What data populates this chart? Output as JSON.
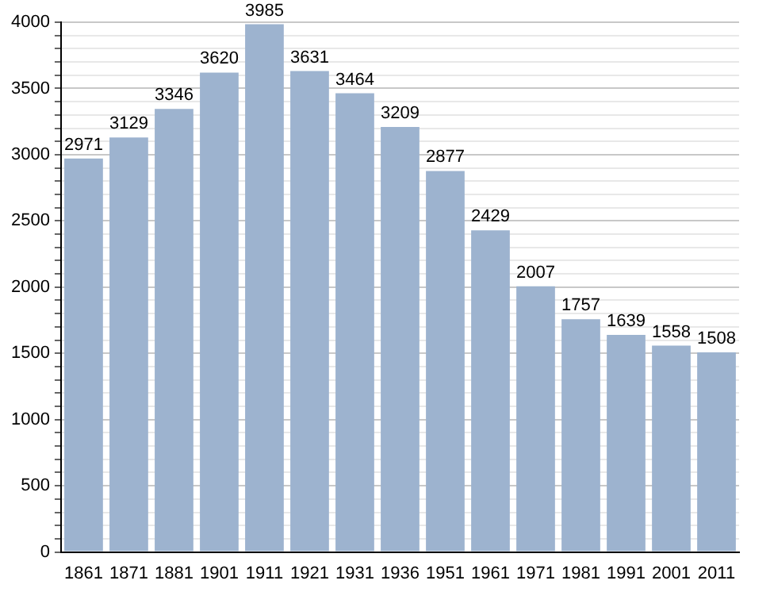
{
  "chart_data": {
    "type": "bar",
    "categories": [
      "1861",
      "1871",
      "1881",
      "1901",
      "1911",
      "1921",
      "1931",
      "1936",
      "1951",
      "1961",
      "1971",
      "1981",
      "1991",
      "2001",
      "2011"
    ],
    "values": [
      2971,
      3129,
      3346,
      3620,
      3985,
      3631,
      3464,
      3209,
      2877,
      2429,
      2007,
      1757,
      1639,
      1558,
      1508
    ],
    "color": "#9db3cf",
    "ylim": [
      0,
      4000
    ],
    "yticks": [
      0,
      {
        "value": 100,
        "label": null
      },
      {
        "value": 200,
        "label": null
      },
      {
        "value": 300,
        "label": null
      },
      {
        "value": 400,
        "label": null
      },
      500,
      {
        "value": 600,
        "label": null
      },
      {
        "value": 700,
        "label": null
      },
      {
        "value": 800,
        "label": null
      },
      {
        "value": 900,
        "label": null
      },
      1000,
      {
        "value": 1100,
        "label": null
      },
      {
        "value": 1200,
        "label": null
      },
      {
        "value": 1300,
        "label": null
      },
      {
        "value": 1400,
        "label": null
      },
      1500,
      {
        "value": 1600,
        "label": null
      },
      {
        "value": 1700,
        "label": null
      },
      {
        "value": 1800,
        "label": null
      },
      {
        "value": 1900,
        "label": null
      },
      2000,
      {
        "value": 2100,
        "label": null
      },
      {
        "value": 2200,
        "label": null
      },
      {
        "value": 2300,
        "label": null
      },
      {
        "value": 2400,
        "label": null
      },
      2500,
      {
        "value": 2600,
        "label": null
      },
      {
        "value": 2700,
        "label": null
      },
      {
        "value": 2800,
        "label": null
      },
      {
        "value": 2900,
        "label": null
      },
      3000,
      {
        "value": 3100,
        "label": null
      },
      {
        "value": 3200,
        "label": null
      },
      {
        "value": 3300,
        "label": null
      },
      {
        "value": 3400,
        "label": null
      },
      3500,
      {
        "value": 3600,
        "label": null
      },
      {
        "value": 3700,
        "label": null
      },
      {
        "value": 3800,
        "label": null
      },
      {
        "value": 3900,
        "label": null
      },
      4000
    ],
    "grid": "y",
    "data_labels": true
  }
}
